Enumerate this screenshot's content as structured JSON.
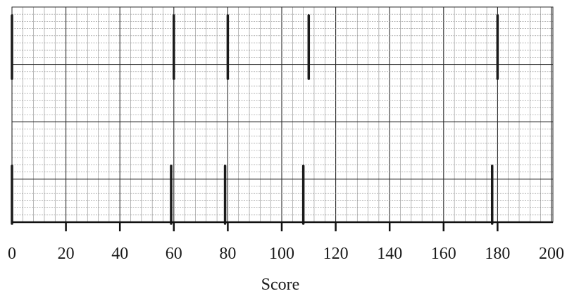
{
  "chart_data": {
    "type": "box",
    "title": "",
    "xlabel": "Score",
    "ylabel": "",
    "xlim": [
      0,
      200
    ],
    "xticks": [
      0,
      20,
      40,
      60,
      80,
      100,
      120,
      140,
      160,
      180,
      200
    ],
    "tick_labels": [
      "0",
      "20",
      "40",
      "60",
      "80",
      "100",
      "120",
      "140",
      "160",
      "180",
      "200"
    ],
    "grid": true,
    "marks": [
      {
        "row": "upper",
        "value": 0
      },
      {
        "row": "upper",
        "value": 60
      },
      {
        "row": "upper",
        "value": 80
      },
      {
        "row": "upper",
        "value": 110
      },
      {
        "row": "upper",
        "value": 180
      },
      {
        "row": "lower",
        "value": 0
      },
      {
        "row": "lower",
        "value": 59
      },
      {
        "row": "lower",
        "value": 79
      },
      {
        "row": "lower",
        "value": 108
      },
      {
        "row": "lower",
        "value": 178
      }
    ],
    "colors": {
      "grid_major": "#2b2b2b",
      "grid_minor": "#8a8a8a",
      "marks": "#1a1a1a",
      "axis": "#111111"
    }
  }
}
